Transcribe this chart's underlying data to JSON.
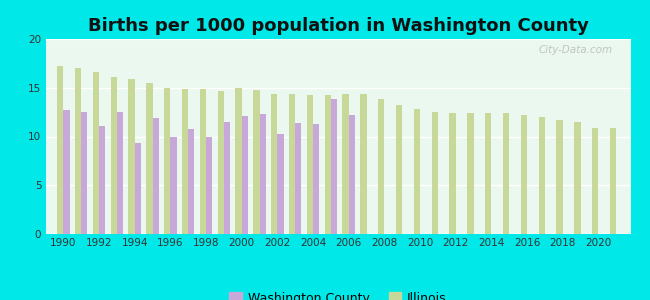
{
  "title": "Births per 1000 population in Washington County",
  "washington_county": {
    "years": [
      1990,
      1991,
      1992,
      1993,
      1994,
      1995,
      1996,
      1997,
      1998,
      1999,
      2000,
      2001,
      2002,
      2003,
      2004,
      2005,
      2006
    ],
    "values": [
      12.7,
      12.5,
      11.1,
      12.5,
      9.3,
      11.9,
      10.0,
      10.8,
      10.0,
      11.5,
      12.1,
      12.3,
      10.3,
      11.4,
      11.3,
      13.8,
      12.2
    ]
  },
  "illinois": {
    "years": [
      1990,
      1991,
      1992,
      1993,
      1994,
      1995,
      1996,
      1997,
      1998,
      1999,
      2000,
      2001,
      2002,
      2003,
      2004,
      2005,
      2006,
      2007,
      2008,
      2009,
      2010,
      2011,
      2012,
      2013,
      2014,
      2015,
      2016,
      2017,
      2018,
      2019,
      2020,
      2021
    ],
    "values": [
      17.2,
      17.0,
      16.6,
      16.1,
      15.9,
      15.5,
      15.0,
      14.9,
      14.9,
      14.7,
      15.0,
      14.8,
      14.4,
      14.4,
      14.3,
      14.3,
      14.4,
      14.4,
      13.8,
      13.2,
      12.8,
      12.5,
      12.4,
      12.4,
      12.4,
      12.4,
      12.2,
      12.0,
      11.7,
      11.5,
      10.9,
      10.9
    ]
  },
  "bar_color_wc": "#c8a8d8",
  "bar_color_il": "#c8d898",
  "bg_color": "#00e8e8",
  "plot_bg": "#eaf8f0",
  "ylabel": "",
  "ylim": [
    0,
    20
  ],
  "yticks": [
    0,
    5,
    10,
    15,
    20
  ],
  "bar_width": 0.35,
  "title_fontsize": 13,
  "legend_wc_label": "Washington County",
  "legend_il_label": "Illinois",
  "watermark": "City-Data.com",
  "xticks": [
    1990,
    1992,
    1994,
    1996,
    1998,
    2000,
    2002,
    2004,
    2006,
    2008,
    2010,
    2012,
    2014,
    2016,
    2018,
    2020
  ]
}
